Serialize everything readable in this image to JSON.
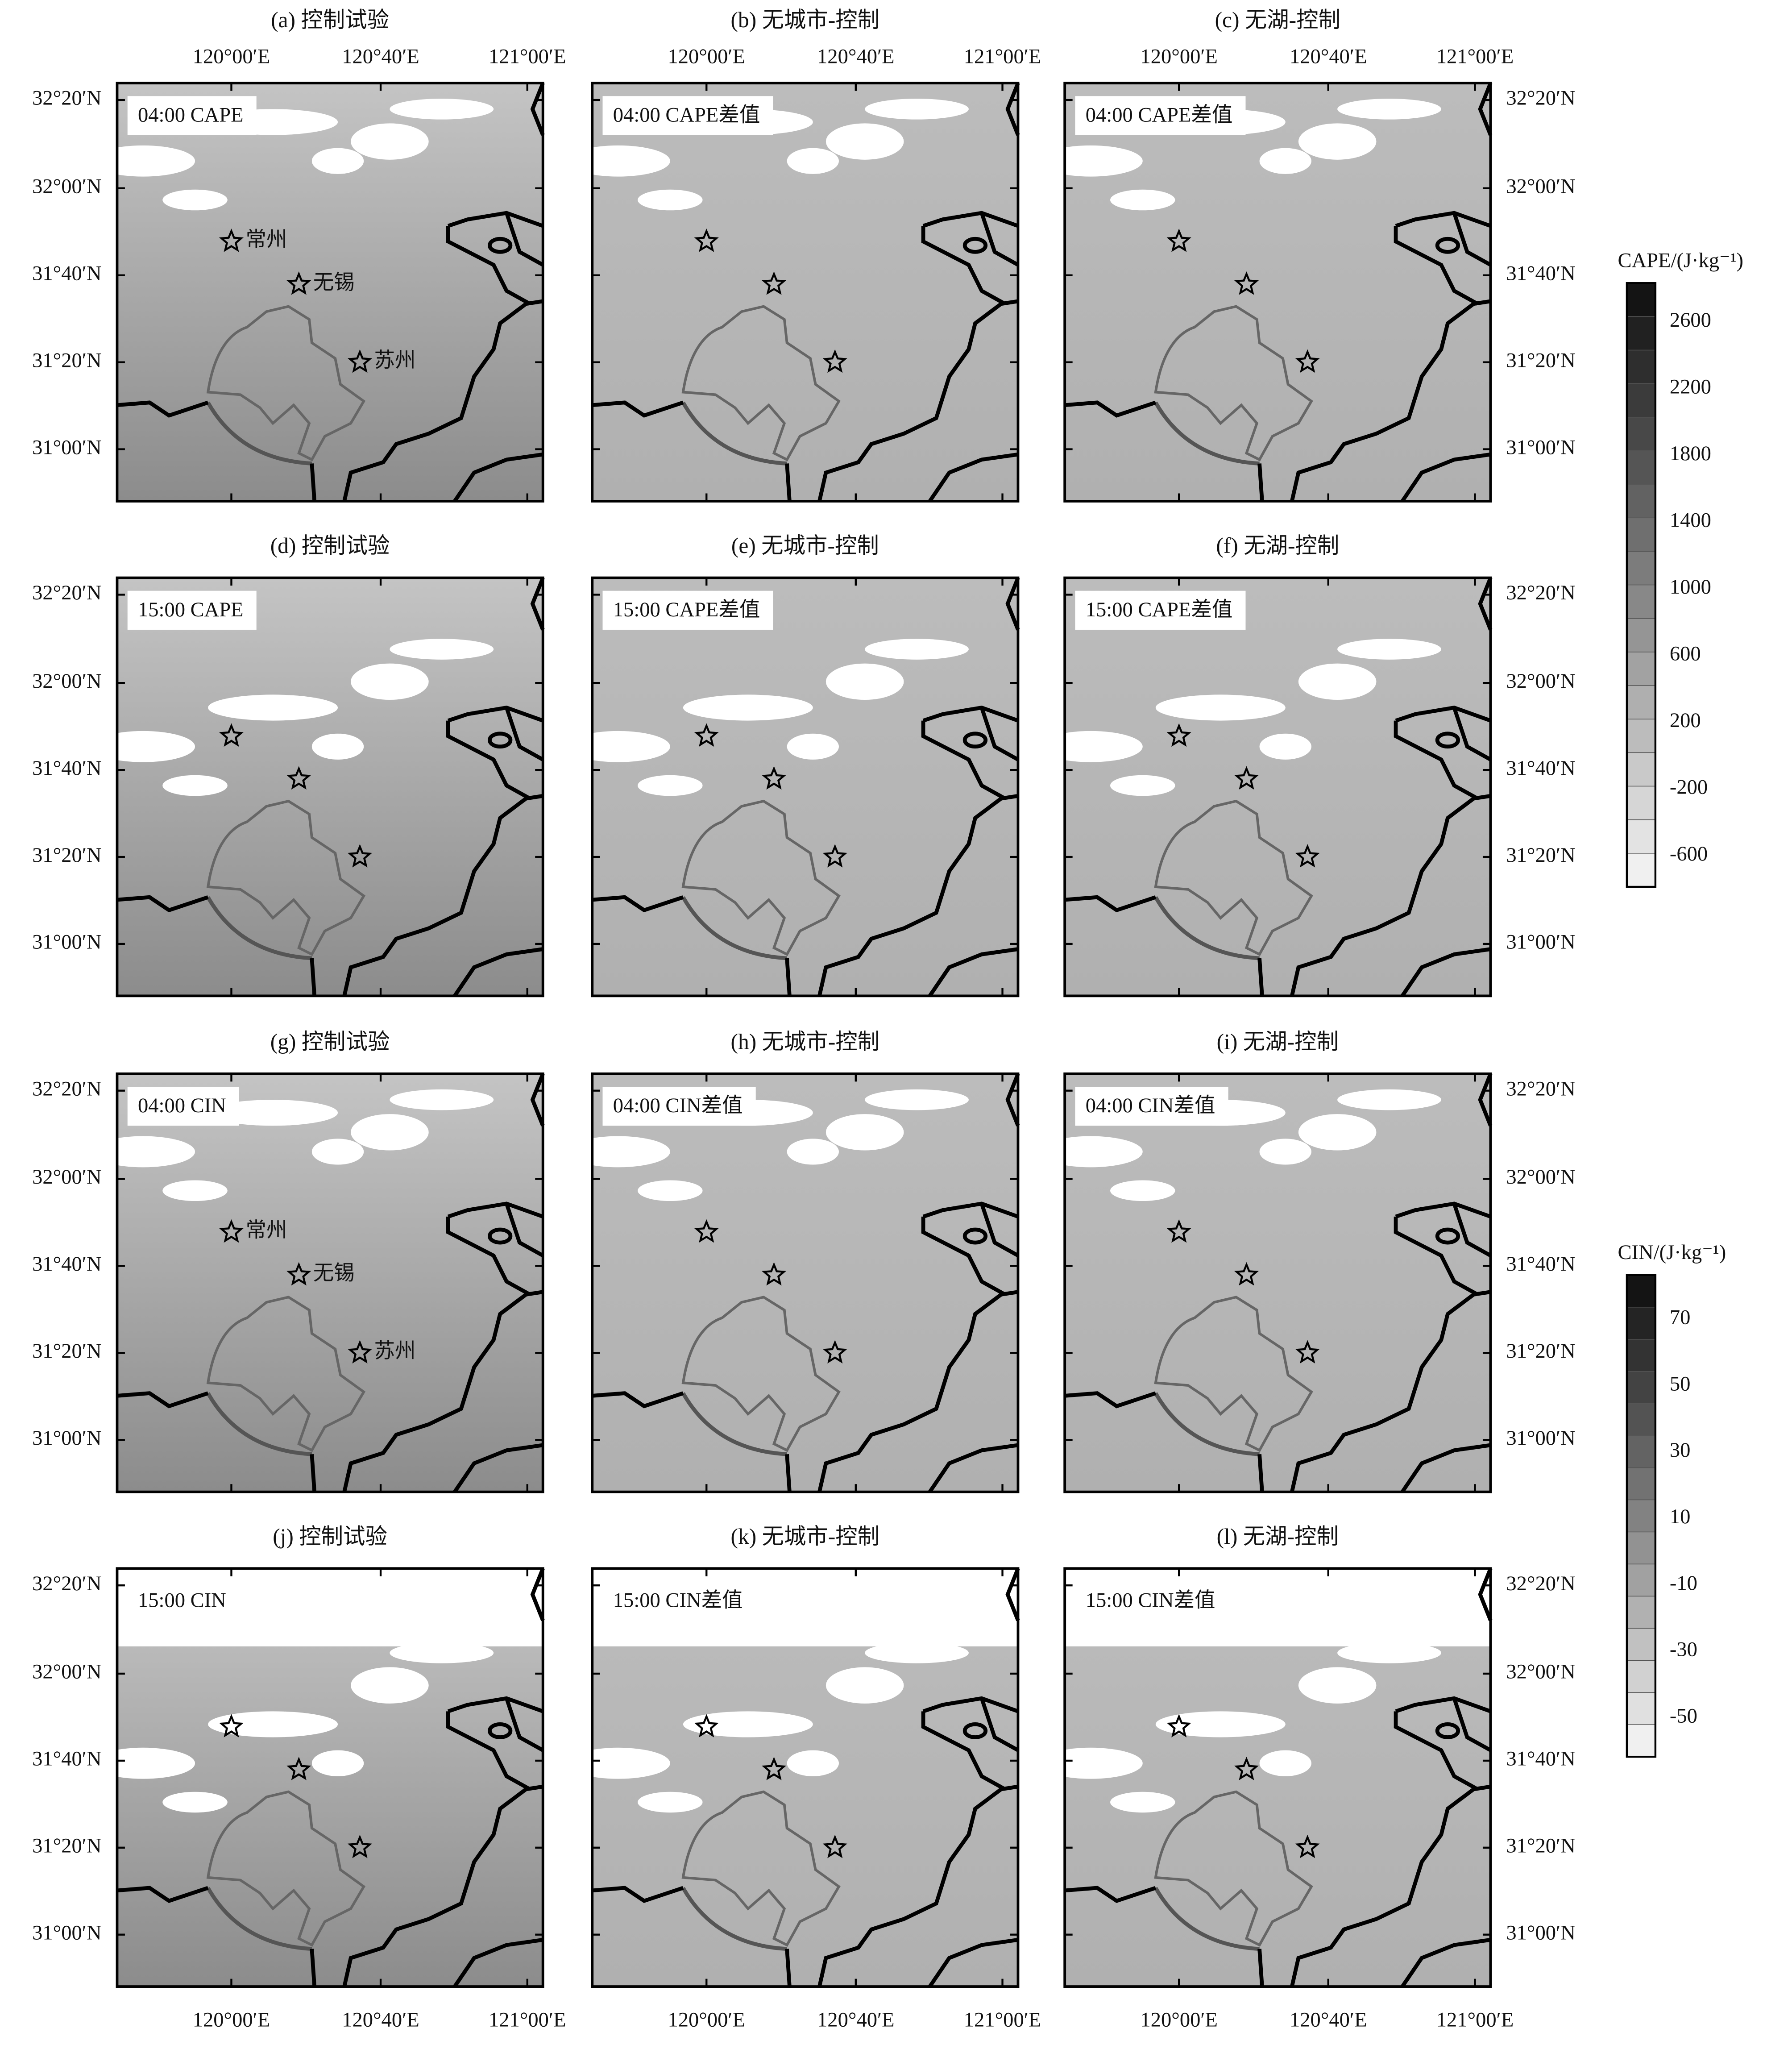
{
  "panels": [
    {
      "title": "(a) 控制试验",
      "label": "04:00 CAPE",
      "cities": [
        "常州",
        "无锡",
        "苏州"
      ]
    },
    {
      "title": "(b) 无城市-控制",
      "label": "04:00 CAPE差值"
    },
    {
      "title": "(c) 无湖-控制",
      "label": "04:00 CAPE差值"
    },
    {
      "title": "(d) 控制试验",
      "label": "15:00 CAPE"
    },
    {
      "title": "(e) 无城市-控制",
      "label": "15:00 CAPE差值"
    },
    {
      "title": "(f) 无湖-控制",
      "label": "15:00 CAPE差值"
    },
    {
      "title": "(g) 控制试验",
      "label": "04:00 CIN",
      "cities": [
        "常州",
        "无锡",
        "苏州"
      ]
    },
    {
      "title": "(h) 无城市-控制",
      "label": "04:00 CIN差值"
    },
    {
      "title": "(i) 无湖-控制",
      "label": "04:00 CIN差值"
    },
    {
      "title": "(j) 控制试验",
      "label": "15:00 CIN"
    },
    {
      "title": "(k) 无城市-控制",
      "label": "15:00 CIN差值"
    },
    {
      "title": "(l) 无湖-控制",
      "label": "15:00 CIN差值"
    }
  ],
  "x_ticks": [
    "120°00′E",
    "120°40′E",
    "121°00′E"
  ],
  "y_ticks": [
    "32°20′N",
    "32°00′N",
    "31°40′N",
    "31°20′N",
    "31°00′N"
  ],
  "colorbars": [
    {
      "title": "CAPE/(J·kg⁻¹)",
      "ticks": [
        2600,
        2200,
        1800,
        1400,
        1000,
        600,
        200,
        -200,
        -600
      ]
    },
    {
      "title": "CIN/(J·kg⁻¹)",
      "ticks": [
        70,
        50,
        30,
        10,
        -10,
        -30,
        -50
      ]
    }
  ]
}
